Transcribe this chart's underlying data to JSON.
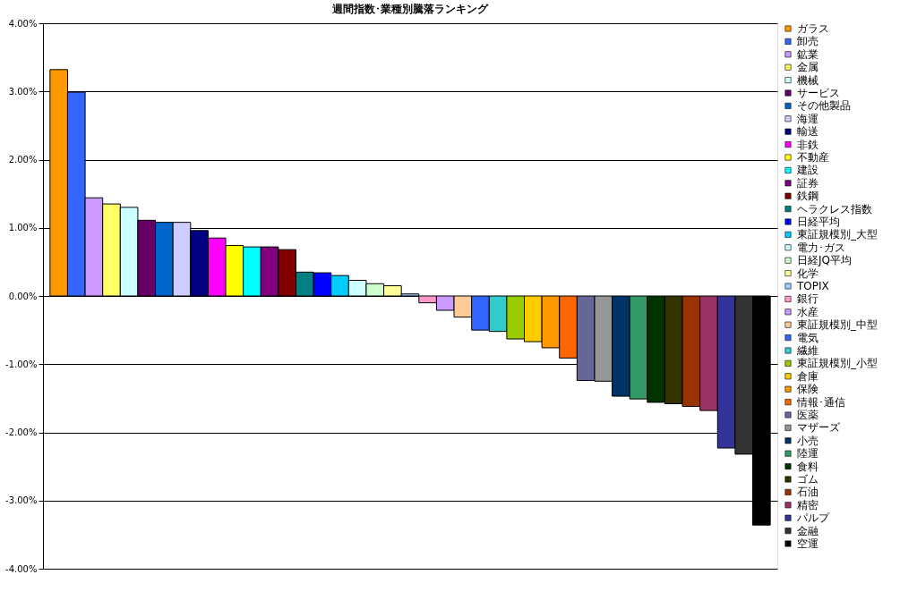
{
  "chart_data": {
    "type": "bar",
    "title": "週間指数･業種別騰落ランキング",
    "categories": [
      null
    ],
    "ylim": [
      -4,
      4
    ],
    "yticks": [
      {
        "value": -4,
        "label": "-4.00%"
      },
      {
        "value": -3,
        "label": "-3.00%"
      },
      {
        "value": -2,
        "label": "-2.00%"
      },
      {
        "value": -1,
        "label": "-1.00%"
      },
      {
        "value": 0,
        "label": "0.00%"
      },
      {
        "value": 1,
        "label": "1.00%"
      },
      {
        "value": 2,
        "label": "2.00%"
      },
      {
        "value": 3,
        "label": "3.00%"
      },
      {
        "value": 4,
        "label": "4.00%"
      }
    ],
    "grid": "y",
    "legend": "right",
    "tick_labels": "y",
    "series": [
      {
        "name": "ガラス",
        "color": "#ff9900",
        "values": [
          3.32
        ]
      },
      {
        "name": "卸売",
        "color": "#3366ff",
        "values": [
          2.99
        ]
      },
      {
        "name": "鉱業",
        "color": "#cc99ff",
        "values": [
          1.44
        ]
      },
      {
        "name": "金属",
        "color": "#ffff66",
        "values": [
          1.35
        ]
      },
      {
        "name": "機械",
        "color": "#ccffff",
        "values": [
          1.3
        ]
      },
      {
        "name": "サービス",
        "color": "#660066",
        "values": [
          1.11
        ]
      },
      {
        "name": "その他製品",
        "color": "#0066cc",
        "values": [
          1.08
        ]
      },
      {
        "name": "海運",
        "color": "#ccccff",
        "values": [
          1.08
        ]
      },
      {
        "name": "輸送",
        "color": "#000080",
        "values": [
          0.96
        ]
      },
      {
        "name": "非鉄",
        "color": "#ff00ff",
        "values": [
          0.85
        ]
      },
      {
        "name": "不動産",
        "color": "#ffff00",
        "values": [
          0.74
        ]
      },
      {
        "name": "建設",
        "color": "#00ffff",
        "values": [
          0.72
        ]
      },
      {
        "name": "証券",
        "color": "#800080",
        "values": [
          0.72
        ]
      },
      {
        "name": "鉄鋼",
        "color": "#800000",
        "values": [
          0.68
        ]
      },
      {
        "name": "ヘラクレス指数",
        "color": "#008080",
        "values": [
          0.35
        ]
      },
      {
        "name": "日経平均",
        "color": "#0000ff",
        "values": [
          0.34
        ]
      },
      {
        "name": "東証規模別_大型",
        "color": "#00ccff",
        "values": [
          0.3
        ]
      },
      {
        "name": "電力･ガス",
        "color": "#ccffff",
        "values": [
          0.23
        ]
      },
      {
        "name": "日経JQ平均",
        "color": "#ccffcc",
        "values": [
          0.18
        ]
      },
      {
        "name": "化学",
        "color": "#ffff99",
        "values": [
          0.15
        ]
      },
      {
        "name": "TOPIX",
        "color": "#99ccff",
        "values": [
          0.03
        ]
      },
      {
        "name": "銀行",
        "color": "#ff99cc",
        "values": [
          -0.1
        ]
      },
      {
        "name": "水産",
        "color": "#cc99ff",
        "values": [
          -0.21
        ]
      },
      {
        "name": "東証規模別_中型",
        "color": "#ffcc99",
        "values": [
          -0.31
        ]
      },
      {
        "name": "電気",
        "color": "#3366ff",
        "values": [
          -0.5
        ]
      },
      {
        "name": "繊維",
        "color": "#33cccc",
        "values": [
          -0.52
        ]
      },
      {
        "name": "東証規模別_小型",
        "color": "#99cc00",
        "values": [
          -0.63
        ]
      },
      {
        "name": "倉庫",
        "color": "#ffcc00",
        "values": [
          -0.67
        ]
      },
      {
        "name": "保険",
        "color": "#ff9900",
        "values": [
          -0.76
        ]
      },
      {
        "name": "情報･通信",
        "color": "#ff6600",
        "values": [
          -0.91
        ]
      },
      {
        "name": "医薬",
        "color": "#666699",
        "values": [
          -1.24
        ]
      },
      {
        "name": "マザーズ",
        "color": "#969696",
        "values": [
          -1.25
        ]
      },
      {
        "name": "小売",
        "color": "#003366",
        "values": [
          -1.47
        ]
      },
      {
        "name": "陸運",
        "color": "#339966",
        "values": [
          -1.51
        ]
      },
      {
        "name": "食料",
        "color": "#003300",
        "values": [
          -1.56
        ]
      },
      {
        "name": "ゴム",
        "color": "#333300",
        "values": [
          -1.58
        ]
      },
      {
        "name": "石油",
        "color": "#993300",
        "values": [
          -1.62
        ]
      },
      {
        "name": "精密",
        "color": "#993366",
        "values": [
          -1.68
        ]
      },
      {
        "name": "パルプ",
        "color": "#333399",
        "values": [
          -2.23
        ]
      },
      {
        "name": "金融",
        "color": "#333333",
        "values": [
          -2.32
        ]
      },
      {
        "name": "空運",
        "color": "#000000",
        "values": [
          -3.36
        ]
      }
    ]
  }
}
